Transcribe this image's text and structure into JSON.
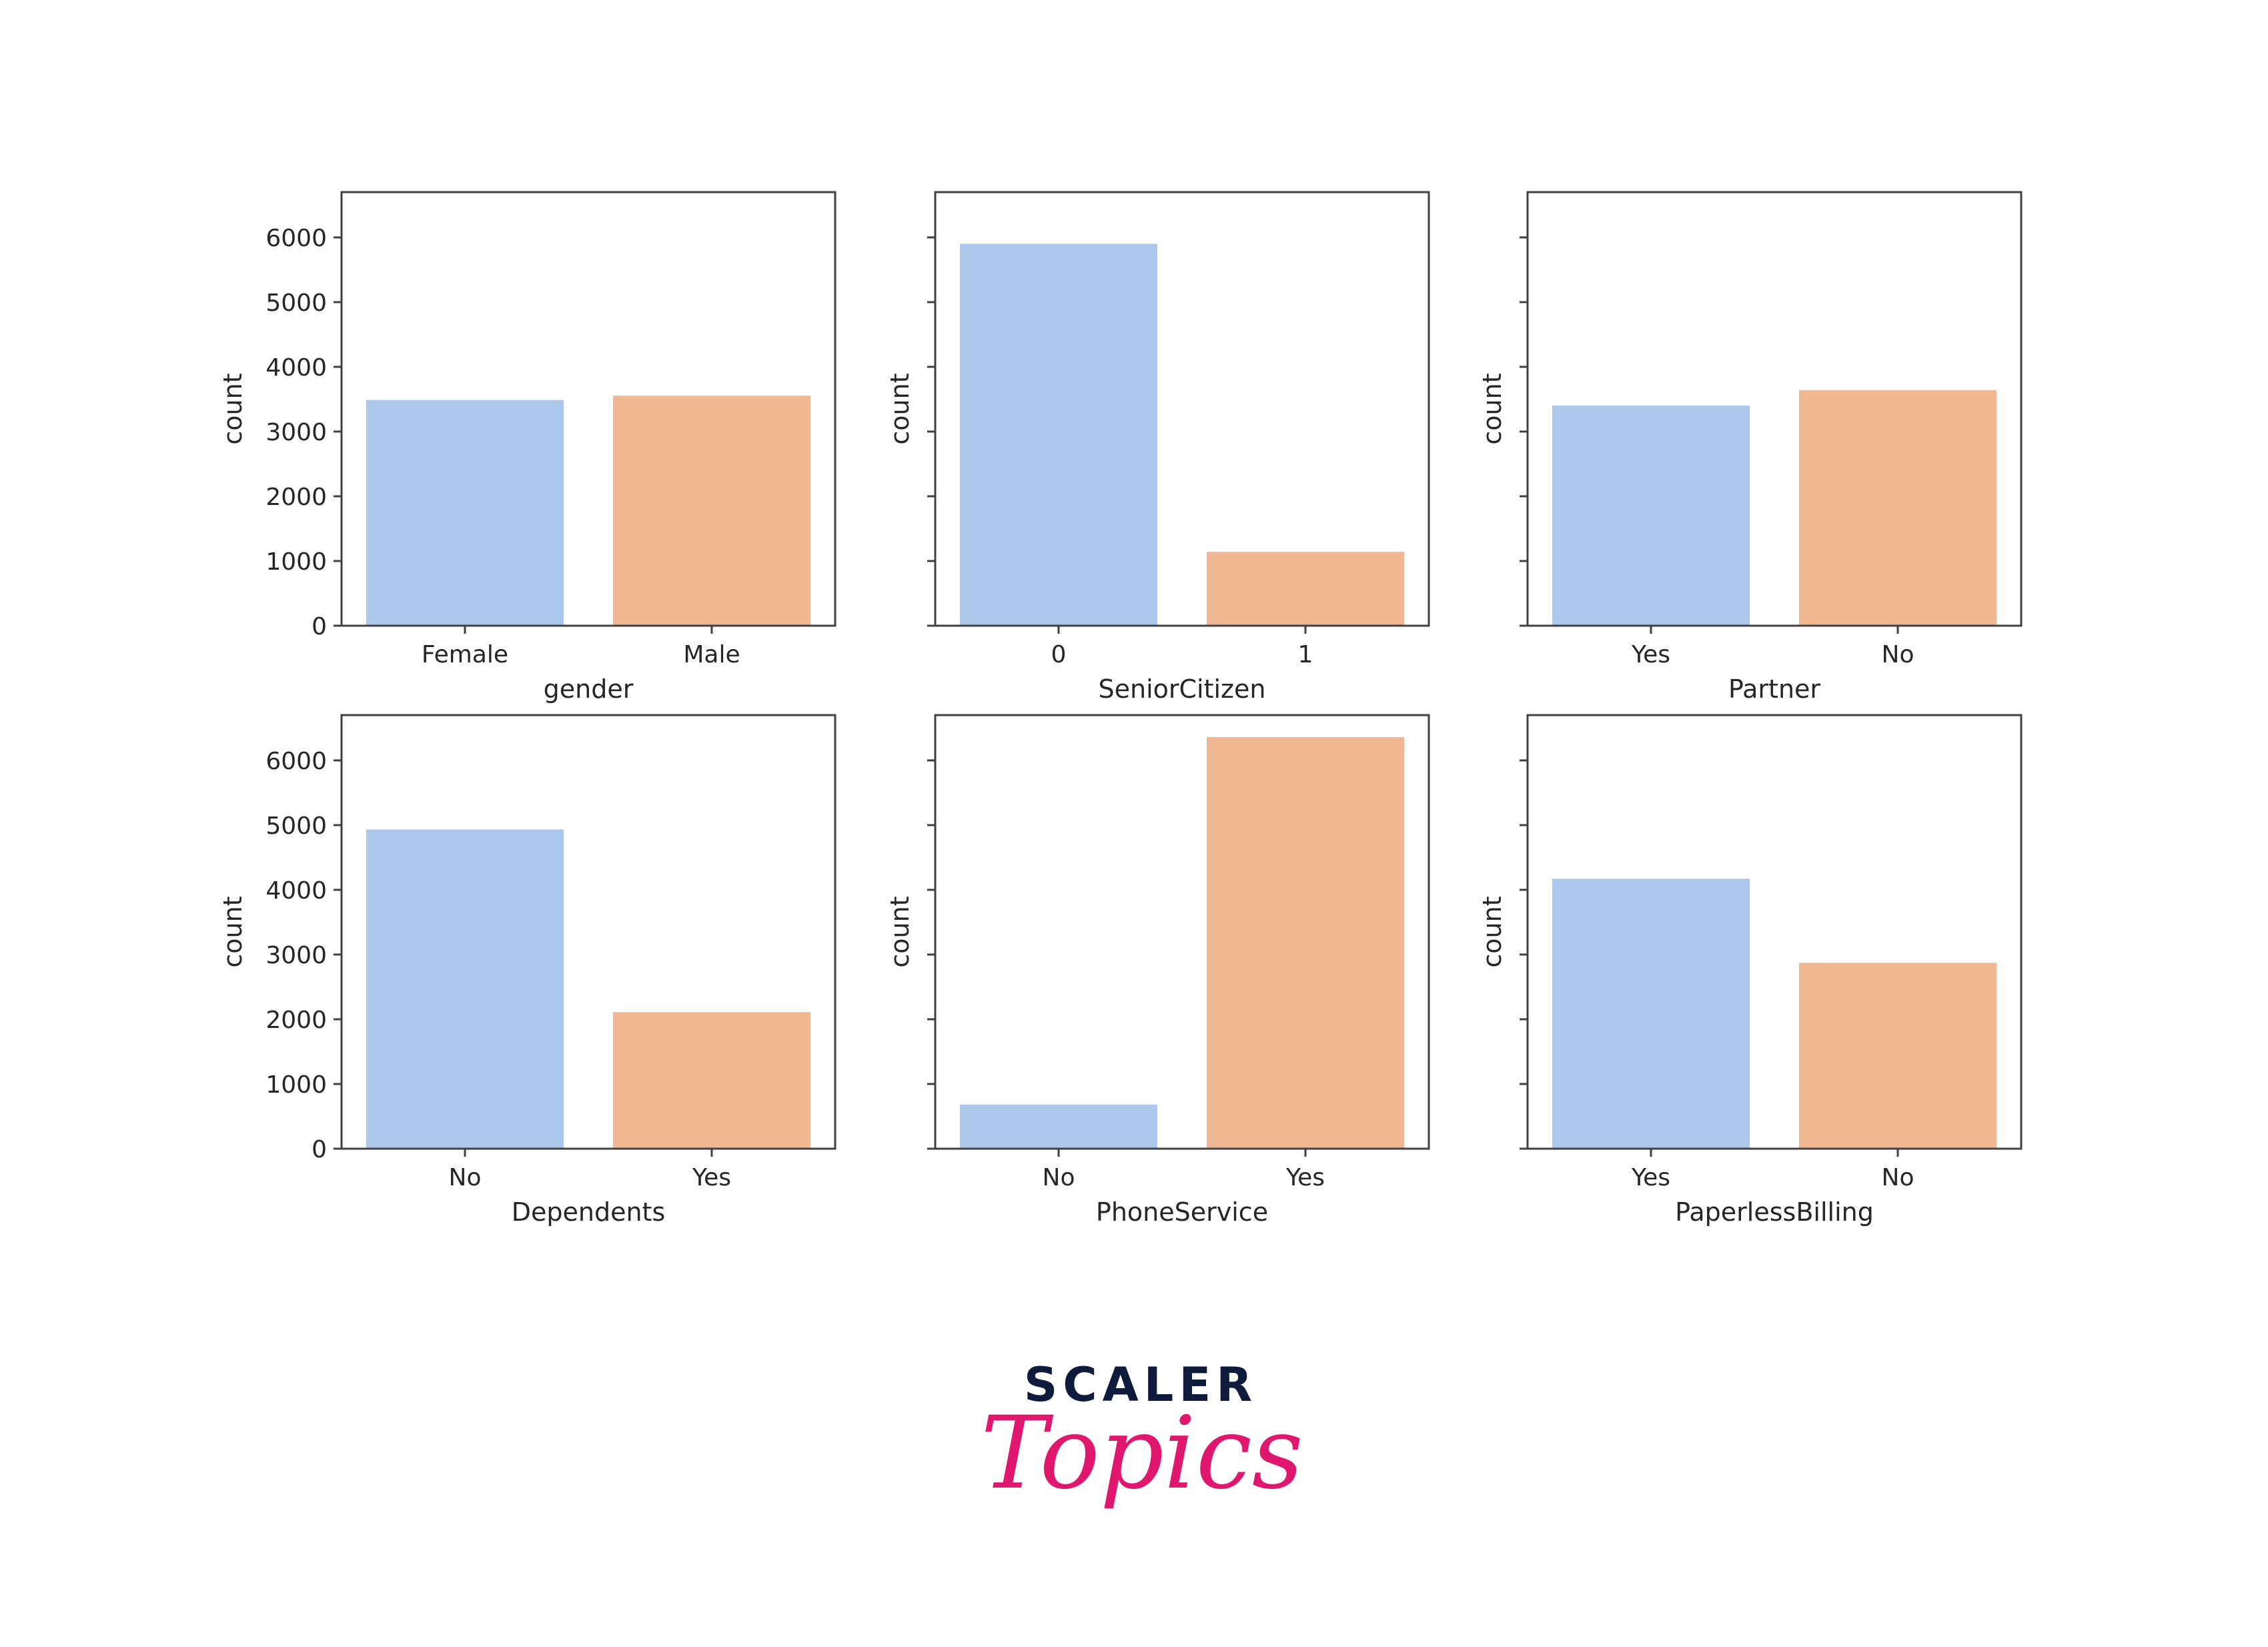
{
  "colors": {
    "bar1": "#abc8ec",
    "bar2": "#f0b792",
    "frame": "#404040",
    "logo_dark": "#0e1b3d",
    "logo_pink": "#e0176f"
  },
  "chart_data": [
    {
      "type": "bar",
      "categories": [
        "Female",
        "Male"
      ],
      "values": [
        3488,
        3555
      ],
      "xlabel": "gender",
      "ylabel": "count",
      "ylim": [
        0,
        6700
      ],
      "yticks": [
        "0",
        "1000",
        "2000",
        "3000",
        "4000",
        "5000",
        "6000"
      ],
      "show_ytick_labels": true,
      "grid": false
    },
    {
      "type": "bar",
      "categories": [
        "0",
        "1"
      ],
      "values": [
        5901,
        1142
      ],
      "xlabel": "SeniorCitizen",
      "ylabel": "count",
      "ylim": [
        0,
        6700
      ],
      "show_ytick_labels": false,
      "grid": false
    },
    {
      "type": "bar",
      "categories": [
        "Yes",
        "No"
      ],
      "values": [
        3402,
        3641
      ],
      "xlabel": "Partner",
      "ylabel": "count",
      "ylim": [
        0,
        6700
      ],
      "show_ytick_labels": false,
      "grid": false
    },
    {
      "type": "bar",
      "categories": [
        "No",
        "Yes"
      ],
      "values": [
        4933,
        2110
      ],
      "xlabel": "Dependents",
      "ylabel": "count",
      "ylim": [
        0,
        6700
      ],
      "yticks": [
        "0",
        "1000",
        "2000",
        "3000",
        "4000",
        "5000",
        "6000"
      ],
      "show_ytick_labels": true,
      "grid": false
    },
    {
      "type": "bar",
      "categories": [
        "No",
        "Yes"
      ],
      "values": [
        682,
        6361
      ],
      "xlabel": "PhoneService",
      "ylabel": "count",
      "ylim": [
        0,
        6700
      ],
      "show_ytick_labels": false,
      "grid": false
    },
    {
      "type": "bar",
      "categories": [
        "Yes",
        "No"
      ],
      "values": [
        4171,
        2872
      ],
      "xlabel": "PaperlessBilling",
      "ylabel": "count",
      "ylim": [
        0,
        6700
      ],
      "show_ytick_labels": false,
      "grid": false
    }
  ],
  "logo": {
    "line1": "SCALER",
    "line2": "Topics"
  }
}
